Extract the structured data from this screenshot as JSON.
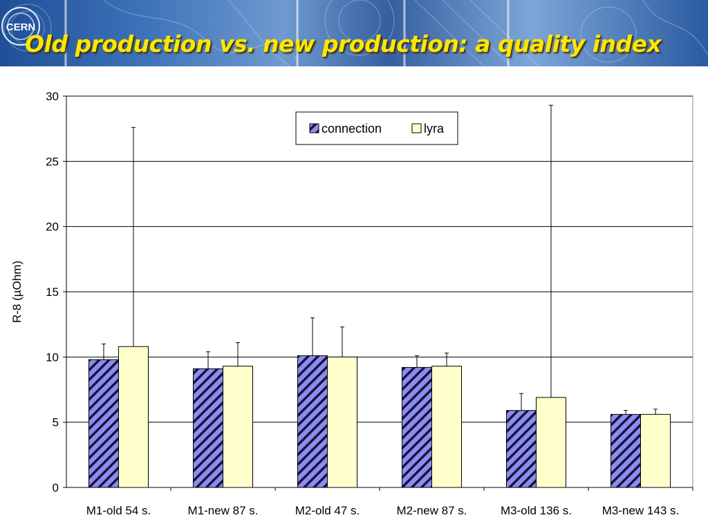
{
  "slide": {
    "title": "Old production vs. new production: a quality index",
    "logo_text": "CERN"
  },
  "chart_data": {
    "type": "bar",
    "categories": [
      "M1-old 54 s.",
      "M1-new 87 s.",
      "M2-old 47 s.",
      "M2-new 87 s.",
      "M3-old 136 s.",
      "M3-new 143 s."
    ],
    "series": [
      {
        "name": "connection",
        "values": [
          9.8,
          9.1,
          10.1,
          9.2,
          5.9,
          5.6
        ],
        "error_upper": [
          11.0,
          10.4,
          13.0,
          10.1,
          7.2,
          5.9
        ],
        "color": "#8c8cf0",
        "pattern": "diagonal-stripes"
      },
      {
        "name": "lyra",
        "values": [
          10.8,
          9.3,
          10.0,
          9.3,
          6.9,
          5.6
        ],
        "error_upper": [
          27.6,
          11.1,
          12.3,
          10.3,
          29.3,
          6.0
        ],
        "color": "#ffffcc",
        "pattern": "solid"
      }
    ],
    "ylabel": "R-8 (µOhm)",
    "xlabel": "",
    "ylim": [
      0,
      30
    ],
    "yticks": [
      "0",
      "5",
      "10",
      "15",
      "20",
      "25",
      "30"
    ],
    "grid": true,
    "legend_position": "top-center"
  }
}
